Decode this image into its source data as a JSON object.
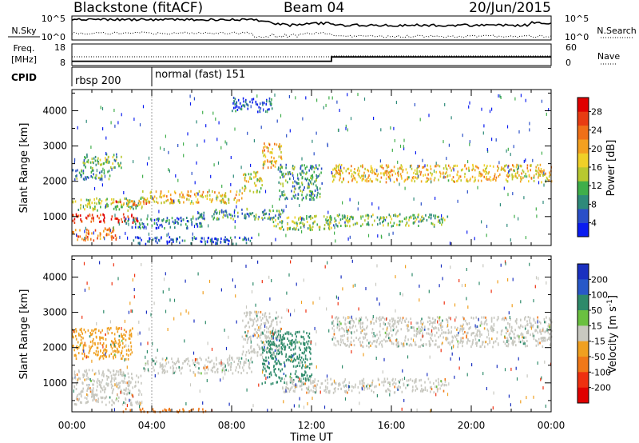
{
  "header": {
    "title": "Blackstone (fitACF)",
    "beam": "Beam 04",
    "date": "20/Jun/2015"
  },
  "noise_panel": {
    "left_label": "N.Sky",
    "right_label": "N.Search",
    "ticks": [
      "10^5",
      "10^0"
    ]
  },
  "freq_panel": {
    "left_label_line1": "Freq.",
    "left_label_line2": "[MHz]",
    "left_ticks": [
      "18",
      "8"
    ],
    "right_label": "Nave",
    "right_ticks": [
      "60",
      "0"
    ],
    "freq_before_mhz": 10,
    "freq_after_mhz": 12,
    "change_hour": 13.0
  },
  "cpid_panel": {
    "label": "CPID",
    "modes": [
      {
        "name": "rbsp 200",
        "start_hour": 0.0
      },
      {
        "name": "normal (fast) 151",
        "start_hour": 4.0
      }
    ]
  },
  "chart_data": [
    {
      "type": "heatmap",
      "quantity": "Power",
      "ylabel": "Slant Range [km]",
      "xlabel": "Time UT",
      "x_ticks": [
        "00:00",
        "04:00",
        "08:00",
        "12:00",
        "16:00",
        "20:00",
        "00:00"
      ],
      "xlim_hours": [
        0,
        24
      ],
      "y_ticks": [
        1000,
        2000,
        3000,
        4000
      ],
      "ylim": [
        180,
        4600
      ],
      "colorbar": {
        "label": "Power [dB]",
        "ticks": [
          4,
          8,
          12,
          16,
          20,
          24,
          28
        ],
        "colors": [
          "#0a1cf0",
          "#2a4fc8",
          "#2e8a7a",
          "#3fae4a",
          "#b8c830",
          "#f0d028",
          "#f4a020",
          "#f07018",
          "#e83c12",
          "#e00000"
        ]
      },
      "echo_bands": [
        {
          "t0": 0.0,
          "t1": 3.5,
          "r0": 1200,
          "r1": 1550,
          "power": 14
        },
        {
          "t0": 0.0,
          "t1": 3.3,
          "r0": 850,
          "r1": 1100,
          "power": 27
        },
        {
          "t0": 0.0,
          "t1": 2.2,
          "r0": 350,
          "r1": 700,
          "power": 22
        },
        {
          "t0": 0.0,
          "t1": 2.0,
          "r0": 2050,
          "r1": 2350,
          "power": 10
        },
        {
          "t0": 0.5,
          "t1": 2.5,
          "r0": 2400,
          "r1": 2800,
          "power": 12
        },
        {
          "t0": 2.0,
          "t1": 4.0,
          "r0": 1350,
          "r1": 1500,
          "power": 24
        },
        {
          "t0": 3.5,
          "t1": 8.5,
          "r0": 1400,
          "r1": 1750,
          "power": 18
        },
        {
          "t0": 8.5,
          "t1": 9.5,
          "r0": 1700,
          "r1": 2300,
          "power": 16
        },
        {
          "t0": 9.5,
          "t1": 10.5,
          "r0": 2400,
          "r1": 3100,
          "power": 20
        },
        {
          "t0": 10.3,
          "t1": 12.5,
          "r0": 1500,
          "r1": 2500,
          "power": 10
        },
        {
          "t0": 6.0,
          "t1": 10.5,
          "r0": 950,
          "r1": 1250,
          "power": 10
        },
        {
          "t0": 10.0,
          "t1": 13.0,
          "r0": 650,
          "r1": 1050,
          "power": 14
        },
        {
          "t0": 12.7,
          "t1": 18.8,
          "r0": 750,
          "r1": 1100,
          "power": 12
        },
        {
          "t0": 2.5,
          "t1": 6.5,
          "r0": 700,
          "r1": 1000,
          "power": 8
        },
        {
          "t0": 3.0,
          "t1": 9.0,
          "r0": 250,
          "r1": 450,
          "power": 6
        },
        {
          "t0": 13.0,
          "t1": 24.0,
          "r0": 2000,
          "r1": 2500,
          "power": 18
        },
        {
          "t0": 8.0,
          "t1": 10.0,
          "r0": 4000,
          "r1": 4400,
          "power": 6
        }
      ]
    },
    {
      "type": "heatmap",
      "quantity": "Velocity",
      "ylabel": "Slant Range [km]",
      "xlabel": "Time UT",
      "x_ticks": [
        "00:00",
        "04:00",
        "08:00",
        "12:00",
        "16:00",
        "20:00",
        "00:00"
      ],
      "xlim_hours": [
        0,
        24
      ],
      "y_ticks": [
        1000,
        2000,
        3000,
        4000
      ],
      "ylim": [
        180,
        4600
      ],
      "colorbar": {
        "label": "Velocity [m s",
        "label_exp": "-1",
        "ticks": [
          "200",
          "100",
          "50",
          "15",
          "-15",
          "-50",
          "-100",
          "-200"
        ],
        "colors": [
          "#1a30c0",
          "#2858c8",
          "#2e8a6a",
          "#6ac040",
          "#c8c8c0",
          "#f0a020",
          "#f07818",
          "#ee3010",
          "#e00000"
        ]
      },
      "echo_bands": [
        {
          "t0": 0.0,
          "t1": 3.5,
          "r0": 400,
          "r1": 1400,
          "velocity": 0
        },
        {
          "t0": 0.0,
          "t1": 3.0,
          "r0": 1700,
          "r1": 2600,
          "velocity": -40
        },
        {
          "t0": 3.5,
          "t1": 9.0,
          "r0": 1300,
          "r1": 1750,
          "velocity": 0
        },
        {
          "t0": 8.5,
          "t1": 10.5,
          "r0": 1800,
          "r1": 3050,
          "velocity": 0
        },
        {
          "t0": 9.5,
          "t1": 12.0,
          "r0": 1000,
          "r1": 2500,
          "velocity": 40
        },
        {
          "t0": 10.5,
          "t1": 18.8,
          "r0": 750,
          "r1": 1150,
          "velocity": 0
        },
        {
          "t0": 13.0,
          "t1": 24.0,
          "r0": 2050,
          "r1": 2900,
          "velocity": 0
        },
        {
          "t0": 2.5,
          "t1": 7.0,
          "r0": 200,
          "r1": 300,
          "velocity": -60
        }
      ]
    }
  ]
}
